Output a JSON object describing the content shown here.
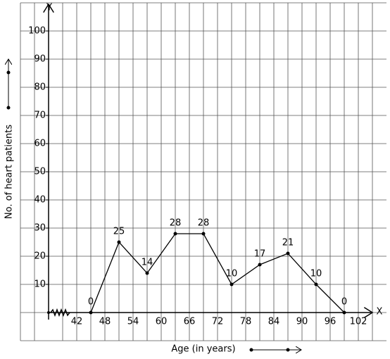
{
  "chart_data": {
    "type": "line",
    "x_label": "Age (in years)",
    "y_label": "No. of heart patients",
    "x_axis_name": "X",
    "y_axis_name": "Y",
    "x": [
      45,
      51,
      57,
      63,
      69,
      75,
      81,
      87,
      93,
      99
    ],
    "values": [
      0,
      25,
      14,
      28,
      28,
      10,
      17,
      21,
      10,
      0
    ],
    "color": "#000000",
    "xlim": [
      36,
      108
    ],
    "xticks": [
      42,
      48,
      54,
      60,
      66,
      72,
      78,
      84,
      90,
      96,
      102
    ],
    "ylim": [
      -10,
      110
    ],
    "yticks": [
      10,
      20,
      30,
      40,
      50,
      60,
      70,
      80,
      90,
      100
    ],
    "grid": true
  }
}
